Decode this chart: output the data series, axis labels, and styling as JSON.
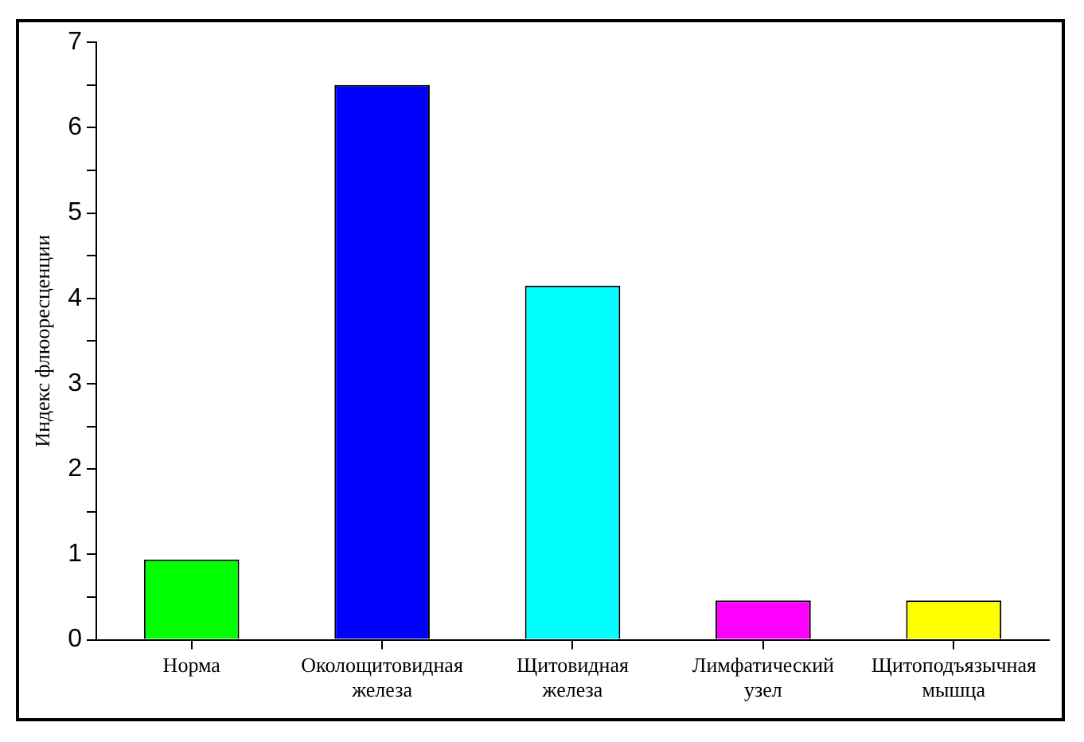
{
  "chart_data": {
    "type": "bar",
    "ylabel": "Индекс флюоресценции",
    "categories": [
      "Норма",
      "Околощитовидная железа",
      "Щитовидная железа",
      "Лимфатический узел",
      "Щитоподъязычная мышца"
    ],
    "values": [
      0.94,
      6.5,
      4.15,
      0.46,
      0.46
    ],
    "colors": [
      "#00ff00",
      "#0000ff",
      "#00ffff",
      "#ff00ff",
      "#ffff00"
    ],
    "ylim": [
      0,
      7
    ],
    "yticks": [
      0,
      {
        "value": 0.5,
        "label": null
      },
      1,
      {
        "value": 1.5,
        "label": null
      },
      2,
      {
        "value": 2.5,
        "label": null
      },
      3,
      {
        "value": 3.5,
        "label": null
      },
      4,
      {
        "value": 4.5,
        "label": null
      },
      5,
      {
        "value": 5.5,
        "label": null
      },
      6,
      {
        "value": 6.5,
        "label": null
      },
      7
    ],
    "grid": false,
    "legend": false
  }
}
